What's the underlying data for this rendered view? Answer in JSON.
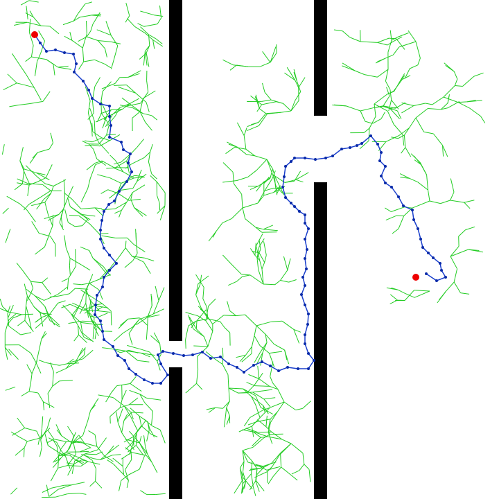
{
  "colors": {
    "background": "#ffffff",
    "walls": "#000000",
    "tree": "#22cc22",
    "path": "#1a3fcc",
    "path_nodes": "#0a2aa8",
    "start": "#ee0000",
    "goal": "#ee0000"
  },
  "icons": {
    "start": "red-circle",
    "goal": "red-circle"
  }
}
